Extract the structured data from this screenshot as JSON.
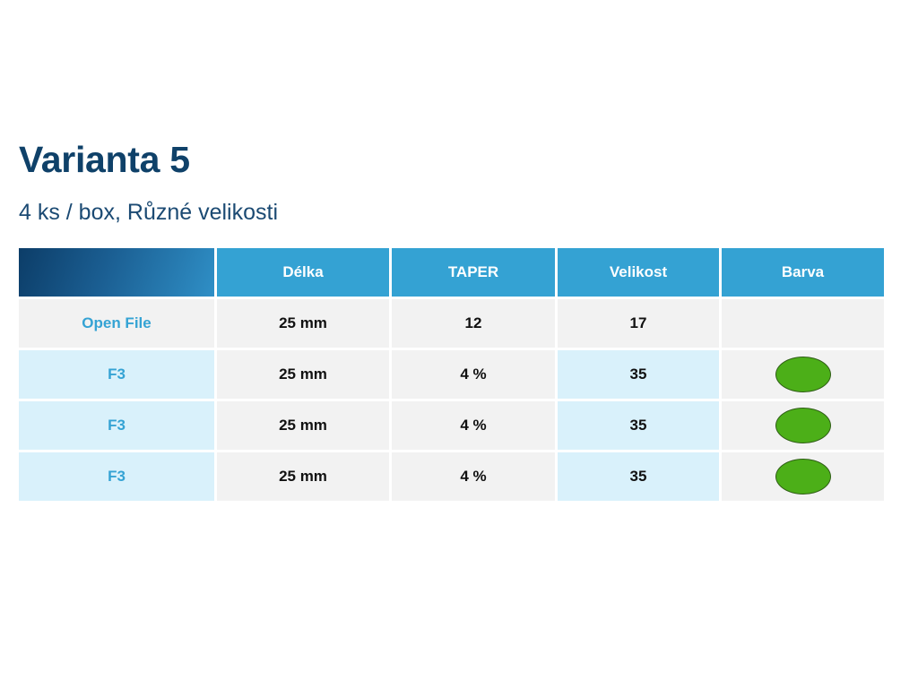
{
  "title": "Varianta 5",
  "subtitle": "4 ks / box, Různé velikosti",
  "table": {
    "headers": [
      "",
      "Délka",
      "TAPER",
      "Velikost",
      "Barva"
    ],
    "rows": [
      {
        "label": "Open File",
        "length": "25 mm",
        "taper": "12",
        "size": "17",
        "color": null
      },
      {
        "label": "F3",
        "length": "25 mm",
        "taper": "4 %",
        "size": "35",
        "color": "#4caf18"
      },
      {
        "label": "F3",
        "length": "25 mm",
        "taper": "4 %",
        "size": "35",
        "color": "#4caf18"
      },
      {
        "label": "F3",
        "length": "25 mm",
        "taper": "4 %",
        "size": "35",
        "color": "#4caf18"
      }
    ]
  },
  "colors": {
    "title": "#0f4169",
    "header_bg": "#34a2d3",
    "label_text": "#35a3d4",
    "cell_gray": "#f2f2f2",
    "cell_blue": "#d9f1fb"
  }
}
